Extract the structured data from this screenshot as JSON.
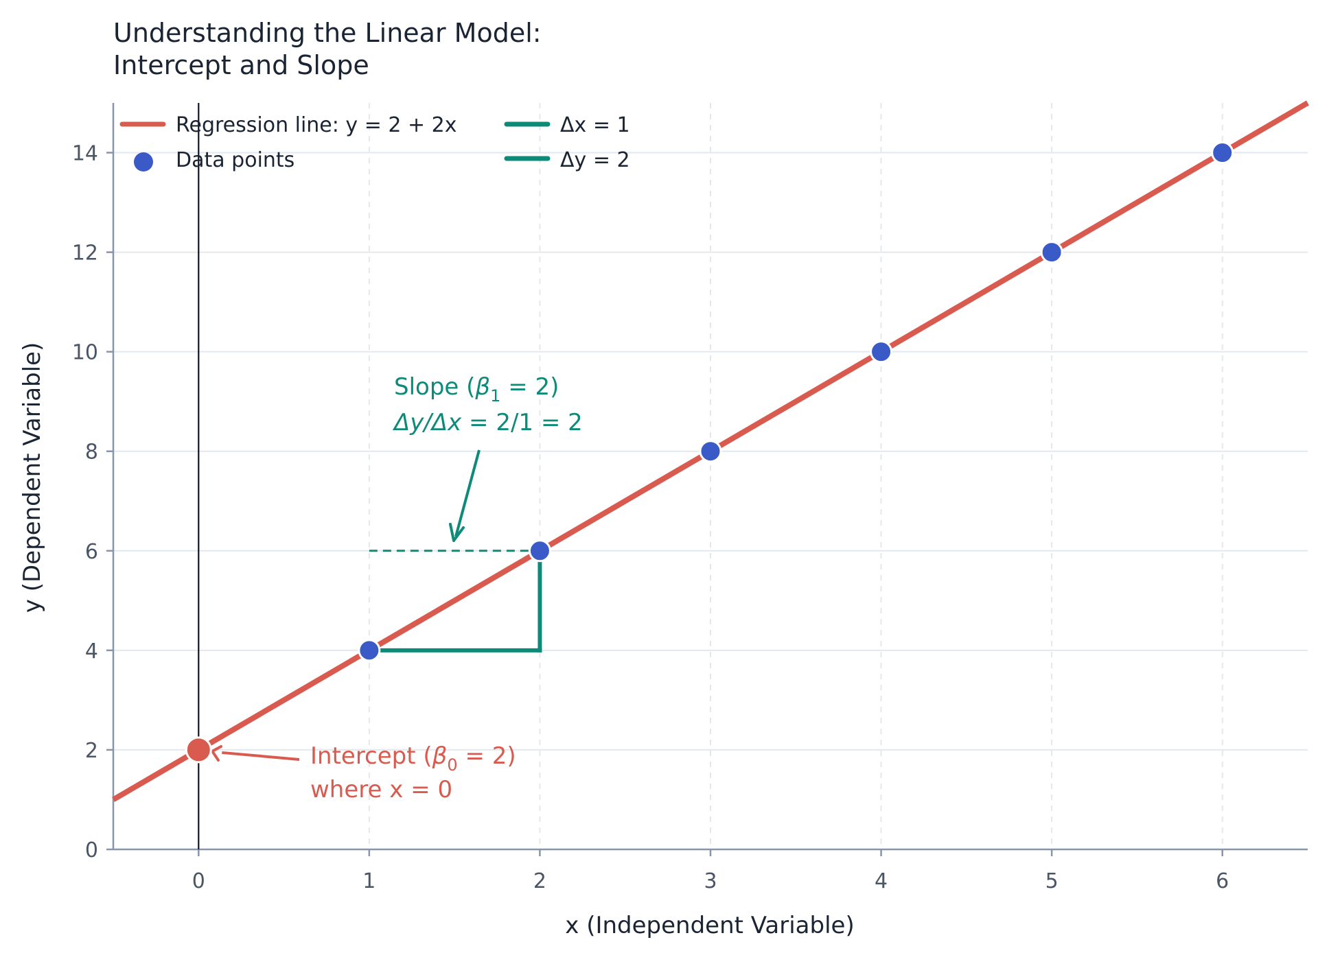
{
  "chart_data": {
    "type": "line",
    "title_lines": [
      "Understanding the Linear Model:",
      "Intercept and Slope"
    ],
    "xlabel": "x (Independent Variable)",
    "ylabel": "y (Dependent Variable)",
    "xlim": [
      -0.5,
      6.5
    ],
    "ylim": [
      0,
      15
    ],
    "xticks": [
      0,
      1,
      2,
      3,
      4,
      5,
      6
    ],
    "yticks": [
      0,
      2,
      4,
      6,
      8,
      10,
      12,
      14
    ],
    "grid": true,
    "legend_position": "top-left",
    "regression_line": {
      "intercept": 2,
      "slope": 2,
      "label": "Regression line: y = 2 + 2x",
      "color": "#d95a4e"
    },
    "data_points": {
      "label": "Data points",
      "color": "#3a5bc7",
      "x": [
        1,
        2,
        3,
        4,
        5,
        6
      ],
      "y": [
        4,
        6,
        8,
        10,
        12,
        14
      ]
    },
    "intercept_point": {
      "x": 0,
      "y": 2,
      "color": "#d95a4e"
    },
    "slope_triangle": {
      "x0": 1,
      "y0": 4,
      "x1": 2,
      "y1": 6,
      "dx_label": "Δx = 1",
      "dy_label": "Δy = 2",
      "color": "#0e8a78"
    },
    "annotations": {
      "intercept": {
        "line1_prefix": "Intercept (",
        "beta": "β",
        "sub": "0",
        "line1_suffix": " = 2)",
        "line2": "where x = 0"
      },
      "slope": {
        "line1_prefix": "Slope (",
        "beta": "β",
        "sub": "1",
        "line1_suffix": " = 2)",
        "line2_italic": "Δy/Δx",
        "line2_suffix": " = 2/1 = 2"
      }
    }
  }
}
